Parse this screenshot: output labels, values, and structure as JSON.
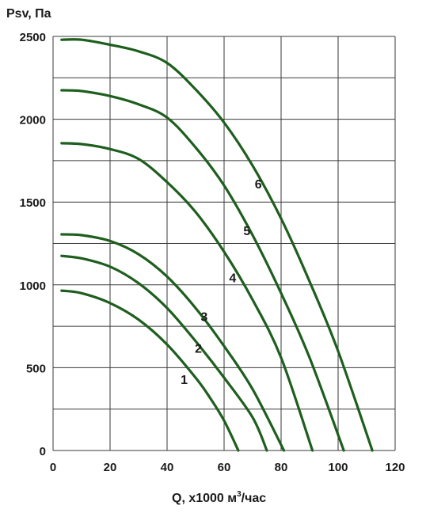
{
  "chart_data": {
    "type": "line",
    "ylabel": "Psv, Па",
    "xlabel_prefix": "Q, x1000 м",
    "xlabel_sup": "3",
    "xlabel_suffix": "/час",
    "xlim": [
      0,
      120
    ],
    "ylim": [
      0,
      2500
    ],
    "x_ticks": [
      0,
      20,
      40,
      60,
      80,
      100,
      120
    ],
    "y_ticks": [
      0,
      500,
      1000,
      1500,
      2000,
      2500
    ],
    "x_grid": [
      0,
      20,
      40,
      60,
      80,
      100,
      120
    ],
    "y_grid": [
      0,
      250,
      500,
      750,
      1000,
      1250,
      1500,
      1750,
      2000,
      2250,
      2500
    ],
    "grid": true,
    "color": "#1e5e1e",
    "series": [
      {
        "label": "1",
        "label_at": [
          46,
          430
        ],
        "points": [
          [
            3,
            965
          ],
          [
            10,
            950
          ],
          [
            20,
            890
          ],
          [
            30,
            790
          ],
          [
            40,
            640
          ],
          [
            50,
            440
          ],
          [
            55,
            320
          ],
          [
            60,
            180
          ],
          [
            65,
            0
          ]
        ]
      },
      {
        "label": "2",
        "label_at": [
          51,
          620
        ],
        "points": [
          [
            3,
            1175
          ],
          [
            10,
            1160
          ],
          [
            20,
            1110
          ],
          [
            30,
            1010
          ],
          [
            40,
            860
          ],
          [
            50,
            660
          ],
          [
            60,
            440
          ],
          [
            70,
            200
          ],
          [
            75,
            0
          ]
        ]
      },
      {
        "label": "3",
        "label_at": [
          53,
          810
        ],
        "points": [
          [
            3,
            1305
          ],
          [
            10,
            1300
          ],
          [
            20,
            1265
          ],
          [
            30,
            1185
          ],
          [
            40,
            1050
          ],
          [
            50,
            860
          ],
          [
            60,
            630
          ],
          [
            70,
            370
          ],
          [
            81,
            0
          ]
        ]
      },
      {
        "label": "4",
        "label_at": [
          63,
          1045
        ],
        "points": [
          [
            3,
            1855
          ],
          [
            10,
            1850
          ],
          [
            20,
            1820
          ],
          [
            30,
            1760
          ],
          [
            40,
            1620
          ],
          [
            50,
            1440
          ],
          [
            60,
            1200
          ],
          [
            70,
            910
          ],
          [
            80,
            560
          ],
          [
            91,
            0
          ]
        ]
      },
      {
        "label": "5",
        "label_at": [
          68,
          1330
        ],
        "points": [
          [
            3,
            2175
          ],
          [
            10,
            2170
          ],
          [
            20,
            2140
          ],
          [
            30,
            2090
          ],
          [
            40,
            2010
          ],
          [
            50,
            1830
          ],
          [
            60,
            1600
          ],
          [
            70,
            1300
          ],
          [
            80,
            950
          ],
          [
            90,
            560
          ],
          [
            102,
            0
          ]
        ]
      },
      {
        "label": "6",
        "label_at": [
          72,
          1610
        ],
        "points": [
          [
            3,
            2480
          ],
          [
            10,
            2480
          ],
          [
            20,
            2450
          ],
          [
            30,
            2410
          ],
          [
            40,
            2340
          ],
          [
            50,
            2180
          ],
          [
            60,
            1980
          ],
          [
            70,
            1720
          ],
          [
            80,
            1400
          ],
          [
            90,
            1020
          ],
          [
            100,
            600
          ],
          [
            112,
            0
          ]
        ]
      }
    ]
  }
}
